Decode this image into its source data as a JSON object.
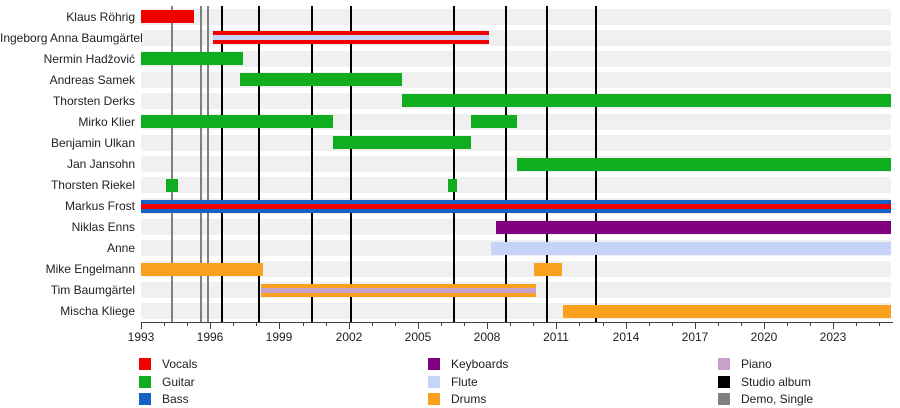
{
  "chart_data": {
    "type": "timeline",
    "title": "",
    "x_axis": {
      "start": 1993,
      "end": 2025.5,
      "major_ticks": [
        1993,
        1996,
        1999,
        2002,
        2005,
        2008,
        2011,
        2014,
        2017,
        2020,
        2023
      ],
      "minor_tick_step": 1,
      "grid": false
    },
    "rows": [
      {
        "name": "Klaus Röhrig",
        "segments": [
          {
            "from": 1993.0,
            "to": 1995.3,
            "roles": [
              "Vocals"
            ]
          }
        ]
      },
      {
        "name": "Ingeborg Anna Baumgärtel",
        "segments": [
          {
            "from": 1996.1,
            "to": 2008.1,
            "roles": [
              "Vocals",
              "Flute"
            ]
          }
        ]
      },
      {
        "name": "Nermin Hadžović",
        "segments": [
          {
            "from": 1993.0,
            "to": 1997.4,
            "roles": [
              "Guitar"
            ]
          }
        ]
      },
      {
        "name": "Andreas Samek",
        "segments": [
          {
            "from": 1997.3,
            "to": 2004.3,
            "roles": [
              "Guitar"
            ]
          }
        ]
      },
      {
        "name": "Thorsten Derks",
        "segments": [
          {
            "from": 2004.3,
            "to": 2025.5,
            "roles": [
              "Guitar"
            ]
          }
        ]
      },
      {
        "name": "Mirko Klier",
        "segments": [
          {
            "from": 1993.0,
            "to": 2001.3,
            "roles": [
              "Guitar"
            ]
          },
          {
            "from": 2007.3,
            "to": 2009.3,
            "roles": [
              "Guitar"
            ]
          }
        ]
      },
      {
        "name": "Benjamin Ulkan",
        "segments": [
          {
            "from": 2001.3,
            "to": 2007.3,
            "roles": [
              "Guitar"
            ]
          }
        ]
      },
      {
        "name": "Jan Jansohn",
        "segments": [
          {
            "from": 2009.3,
            "to": 2025.5,
            "roles": [
              "Guitar"
            ]
          }
        ]
      },
      {
        "name": "Thorsten Riekel",
        "segments": [
          {
            "from": 1994.1,
            "to": 1994.6,
            "roles": [
              "Guitar"
            ]
          },
          {
            "from": 2006.3,
            "to": 2006.7,
            "roles": [
              "Guitar"
            ]
          }
        ]
      },
      {
        "name": "Markus Frost",
        "segments": [
          {
            "from": 1993.0,
            "to": 2025.5,
            "roles": [
              "Bass",
              "Vocals"
            ]
          }
        ]
      },
      {
        "name": "Niklas Enns",
        "segments": [
          {
            "from": 2008.4,
            "to": 2025.5,
            "roles": [
              "Keyboards"
            ]
          }
        ]
      },
      {
        "name": "Anne",
        "segments": [
          {
            "from": 2008.15,
            "to": 2025.5,
            "roles": [
              "Flute"
            ]
          }
        ]
      },
      {
        "name": "Mike Engelmann",
        "segments": [
          {
            "from": 1993.0,
            "to": 1998.3,
            "roles": [
              "Drums"
            ]
          },
          {
            "from": 2010.05,
            "to": 2011.25,
            "roles": [
              "Drums"
            ]
          }
        ]
      },
      {
        "name": "Tim Baumgärtel",
        "segments": [
          {
            "from": 1998.2,
            "to": 2010.1,
            "roles": [
              "Drums",
              "Piano"
            ]
          }
        ]
      },
      {
        "name": "Mischa Kliege",
        "segments": [
          {
            "from": 2011.3,
            "to": 2025.5,
            "roles": [
              "Drums"
            ]
          }
        ]
      }
    ],
    "events": [
      {
        "type": "Demo, Single",
        "year": 1994.35
      },
      {
        "type": "Demo, Single",
        "year": 1995.6
      },
      {
        "type": "Demo, Single",
        "year": 1995.9
      },
      {
        "type": "Studio album",
        "year": 1996.5
      },
      {
        "type": "Studio album",
        "year": 1998.1
      },
      {
        "type": "Studio album",
        "year": 2000.4
      },
      {
        "type": "Studio album",
        "year": 2002.1
      },
      {
        "type": "Studio album",
        "year": 2006.55
      },
      {
        "type": "Studio album",
        "year": 2008.8
      },
      {
        "type": "Studio album",
        "year": 2010.6
      },
      {
        "type": "Studio album",
        "year": 2012.7
      }
    ],
    "legend": {
      "position": "bottom",
      "columns": [
        [
          {
            "label": "Vocals",
            "color_key": "Vocals"
          },
          {
            "label": "Guitar",
            "color_key": "Guitar"
          },
          {
            "label": "Bass",
            "color_key": "Bass"
          }
        ],
        [
          {
            "label": "Keyboards",
            "color_key": "Keyboards"
          },
          {
            "label": "Flute",
            "color_key": "Flute"
          },
          {
            "label": "Drums",
            "color_key": "Drums"
          }
        ],
        [
          {
            "label": "Piano",
            "color_key": "Piano"
          },
          {
            "label": "Studio album",
            "color_key": "Studio album"
          },
          {
            "label": "Demo, Single",
            "color_key": "Demo, Single"
          }
        ]
      ]
    },
    "colors": {
      "Vocals": "#f20000",
      "Guitar": "#10ad20",
      "Bass": "#1563c5",
      "Keyboards": "#800080",
      "Flute": "#c6d5f7",
      "Drums": "#f9a11f",
      "Piano": "#c8a0c8",
      "Studio album": "#000000",
      "Demo, Single": "#808080",
      "row_band": "#f0f0f0",
      "axis": "#404040"
    }
  }
}
